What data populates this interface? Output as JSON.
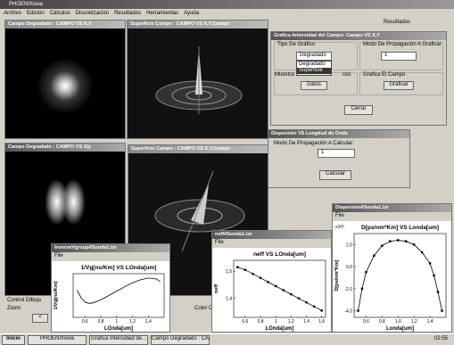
{
  "window": {
    "title": "PHOENIXowa"
  },
  "menu": [
    "Archivo",
    "Edición",
    "Cálculos",
    "Discretización",
    "Resultados",
    "Herramientas",
    "Ayuda"
  ],
  "side_label": "Resultados",
  "windows": {
    "campo1": "Campo Degradado : CAMPO VS X,Y",
    "sup1": "Superficie Campo : CAMPO VS X,Y,Campo",
    "campo2": "Campo Degradado : CAMPO VS X[y",
    "sup2": "Superficie Campo : CAMPO VS X,Y,Campo"
  },
  "dialog_intensidad": {
    "title": "Grafica Intensidad del Campo: Campo VS X,Y",
    "tipo_label": "Tipo De Gráfico",
    "tipo_value": "Degradado",
    "options": [
      "Degradado",
      "Superficie"
    ],
    "modo_label": "Modo De Propagación A Graficar",
    "modo_value": "1",
    "muestra_label": "Muestra",
    "muestra_suffix": "cos",
    "datos_button": "Datos",
    "grafica_label": "Grafica El Campo",
    "graficar_button": "Graficar",
    "cerrar_button": "Cerrar"
  },
  "dialog_dispersion": {
    "title": "Dispersión VS Longitud de Onda",
    "modo_label": "Modo De Propagación A Calcular",
    "modo_value": "1",
    "calcular_button": "Calcular"
  },
  "control": {
    "title": "Control Dibujo",
    "zoom": "Zoom",
    "color": "Color O",
    "back": "<"
  },
  "plots": [
    {
      "window_title": "InverseVgroup#Sonda1.txt",
      "menu": "File",
      "title": "1/Vg[ns/Km] VS LOnda[um]",
      "xlabel": "LOnda[um]",
      "ylabel": "1/Vg[ns/Km]",
      "x": [
        0.5,
        0.55,
        0.6,
        0.65,
        0.7,
        0.8,
        0.9,
        1.0,
        1.1,
        1.2,
        1.3,
        1.4,
        1.5,
        1.55
      ],
      "y": [
        0.62,
        0.45,
        0.35,
        0.32,
        0.33,
        0.4,
        0.5,
        0.6,
        0.7,
        0.79,
        0.86,
        0.9,
        0.88,
        0.82
      ],
      "xlim": [
        0.45,
        1.6
      ],
      "ylim": [
        0,
        1
      ],
      "xticks": [
        {
          "value": 0.6,
          "label": "0,6"
        },
        {
          "value": 0.8,
          "label": "0,8"
        },
        1,
        {
          "value": 1.2,
          "label": "1,2"
        },
        {
          "value": 1.4,
          "label": "1,4"
        }
      ],
      "yticks": [],
      "marker": false
    },
    {
      "window_title": "neff#Sonda1.txt",
      "menu": "File",
      "title": "neff VS LOnda[um]",
      "xlabel": "LOnda[um]",
      "ylabel": "neff",
      "x": [
        0.5,
        0.6,
        0.7,
        0.8,
        0.9,
        1.0,
        1.1,
        1.2,
        1.3,
        1.4,
        1.5,
        1.6
      ],
      "y": [
        1.515,
        1.505,
        1.49,
        1.475,
        1.46,
        1.445,
        1.43,
        1.415,
        1.4,
        1.385,
        1.37,
        1.355
      ],
      "xlim": [
        0.45,
        1.65
      ],
      "ylim": [
        1.33,
        1.54
      ],
      "xticks": [
        {
          "value": 0.6,
          "label": "0,6"
        },
        {
          "value": 0.8,
          "label": "0,8"
        },
        1,
        {
          "value": 1.2,
          "label": "1,2"
        },
        {
          "value": 1.4,
          "label": "1,4"
        },
        {
          "value": 1.6,
          "label": "1,6"
        }
      ],
      "yticks": [
        {
          "value": 1.5,
          "label": "1,5"
        },
        {
          "value": 1.4,
          "label": "1,4"
        }
      ],
      "marker": true
    },
    {
      "window_title": "Dispersion#Sonda1.txt",
      "menu": "File",
      "title": "D[ps/nm*Km] VS Londa[um]",
      "xlabel": "Londa[um]",
      "ylabel": "D[ps/nm*Km]",
      "y_scale_label": "x10³",
      "x": [
        0.5,
        0.55,
        0.6,
        0.7,
        0.8,
        0.9,
        1.0,
        1.1,
        1.2,
        1.3,
        1.4,
        1.45,
        1.5,
        1.55
      ],
      "y": [
        -4,
        -2,
        -0.5,
        1,
        1.9,
        2.3,
        2.4,
        2.3,
        2,
        1.3,
        0.3,
        -0.8,
        -2.3,
        -4
      ],
      "xlim": [
        0.45,
        1.6
      ],
      "ylim": [
        -4.6,
        3
      ],
      "xticks": [
        {
          "value": 0.6,
          "label": "0,6"
        },
        {
          "value": 0.8,
          "label": "0,8"
        },
        {
          "value": 1,
          "label": "1,0"
        },
        {
          "value": 1.2,
          "label": "1,2"
        },
        {
          "value": 1.4,
          "label": "1,4"
        }
      ],
      "yticks": [
        {
          "value": 2,
          "label": "2,0"
        },
        {
          "value": 0,
          "label": "0,0"
        },
        {
          "value": -2,
          "label": "-2,0"
        },
        {
          "value": -4,
          "label": "-4,0"
        }
      ],
      "marker": true
    }
  ],
  "taskbar": {
    "start": "Inicio",
    "items": [
      "PHOENIXowa",
      "Grafica Intensidad de...",
      "Campo Degradado : CA..."
    ],
    "clock": "02:55"
  }
}
